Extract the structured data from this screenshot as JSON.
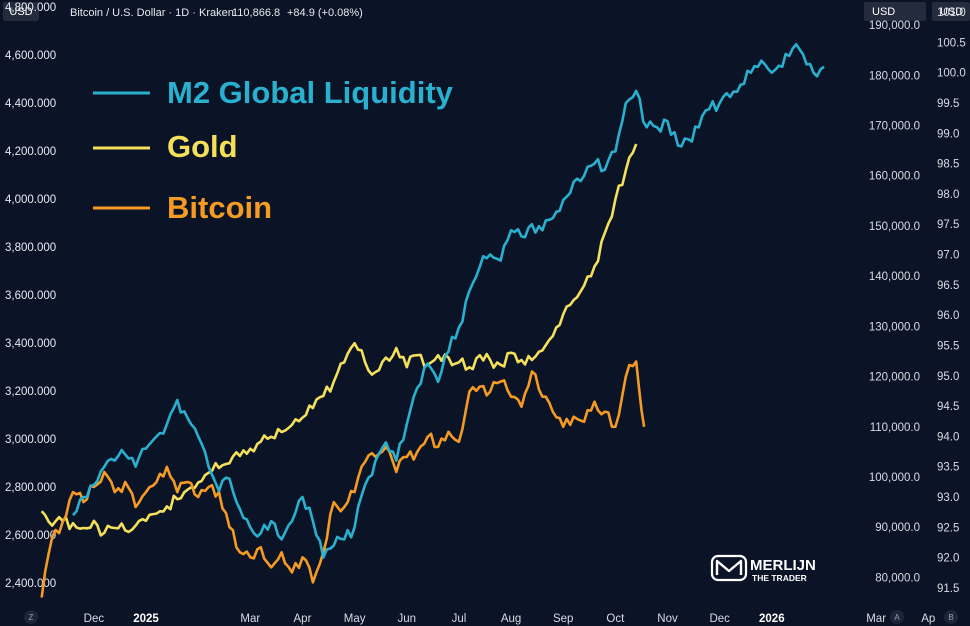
{
  "header": {
    "symbol": "Bitcoin / U.S. Dollar · 1D · Kraken",
    "price": "110,866.8",
    "change": "+84.9 (+0.08%)",
    "currency_left": "USD",
    "currency_right_1": "USD",
    "currency_right_2": "USD"
  },
  "corner_buttons": {
    "left": "Z",
    "mid": "A",
    "right": "B"
  },
  "logo": {
    "line1": "MERLIJN",
    "line2": "THE TRADER"
  },
  "colors": {
    "background": "#0b1326",
    "m2": "#2ab0cf",
    "gold": "#f5e05c",
    "bitcoin": "#f59b23",
    "header_price": "#f59b23"
  },
  "chart_data": {
    "type": "line",
    "title": "",
    "legend": [
      "M2 Global Liquidity",
      "Gold",
      "Bitcoin"
    ],
    "legend_position": "top-left",
    "x_labels": [
      {
        "label": "Dec",
        "t": 1,
        "bold": false
      },
      {
        "label": "2025",
        "t": 2,
        "bold": true
      },
      {
        "label": "Mar",
        "t": 4,
        "bold": false
      },
      {
        "label": "Apr",
        "t": 5,
        "bold": false
      },
      {
        "label": "May",
        "t": 6,
        "bold": false
      },
      {
        "label": "Jun",
        "t": 7,
        "bold": false
      },
      {
        "label": "Jul",
        "t": 8,
        "bold": false
      },
      {
        "label": "Aug",
        "t": 9,
        "bold": false
      },
      {
        "label": "Sep",
        "t": 10,
        "bold": false
      },
      {
        "label": "Oct",
        "t": 11,
        "bold": false
      },
      {
        "label": "Nov",
        "t": 12,
        "bold": false
      },
      {
        "label": "Dec",
        "t": 13,
        "bold": false
      },
      {
        "label": "2026",
        "t": 14,
        "bold": true
      },
      {
        "label": "Mar",
        "t": 16,
        "bold": false
      },
      {
        "label": "Ap",
        "t": 17,
        "bold": false
      }
    ],
    "x_range": [
      -0.8,
      17.8
    ],
    "left_axis": {
      "name": "Gold (USD)",
      "range": [
        2330,
        4830
      ],
      "ticks": [
        "4,800.000",
        "4,600.000",
        "4,400.000",
        "4,200.000",
        "4,000.000",
        "3,800.000",
        "3,600.000",
        "3,400.000",
        "3,200.000",
        "3,000.000",
        "2,800.000",
        "2,600.000",
        "2,400.000"
      ]
    },
    "middle_axis": {
      "name": "Bitcoin (USD)",
      "range": [
        75500,
        195000
      ],
      "ticks": [
        "190,000.0",
        "180,000.0",
        "170,000.0",
        "160,000.0",
        "150,000.0",
        "140,000.0",
        "130,000.0",
        "120,000.0",
        "110,000.0",
        "100,000.0",
        "90,000.0",
        "80,000.0"
      ]
    },
    "right_axis": {
      "name": "M2 Global Liquidity",
      "range": [
        91.3,
        101.2
      ],
      "ticks": [
        "101.0",
        "100.5",
        "100.0",
        "99.5",
        "99.0",
        "98.5",
        "98.0",
        "97.5",
        "97.0",
        "96.5",
        "96.0",
        "95.5",
        "95.0",
        "94.5",
        "94.0",
        "93.5",
        "93.0",
        "92.5",
        "92.0",
        "91.5"
      ]
    },
    "series": [
      {
        "name": "Gold",
        "axis": "left",
        "color": "#f5e05c",
        "x": [
          0.0,
          0.2,
          0.4,
          0.6,
          0.8,
          1.0,
          1.2,
          1.4,
          1.6,
          1.8,
          2.0,
          2.2,
          2.4,
          2.6,
          2.8,
          3.0,
          3.2,
          3.4,
          3.6,
          3.8,
          4.0,
          4.2,
          4.4,
          4.6,
          4.8,
          5.0,
          5.2,
          5.4,
          5.6,
          5.8,
          6.0,
          6.2,
          6.4,
          6.6,
          6.8,
          7.0,
          7.2,
          7.4,
          7.6,
          7.8,
          8.0,
          8.2,
          8.4,
          8.6,
          8.8,
          9.0,
          9.2,
          9.4,
          9.6,
          9.8,
          10.0,
          10.2,
          10.4,
          10.6,
          10.8,
          11.0,
          11.2,
          11.4
        ],
        "values": [
          2700,
          2640,
          2660,
          2650,
          2630,
          2660,
          2610,
          2630,
          2620,
          2640,
          2660,
          2690,
          2720,
          2750,
          2790,
          2820,
          2860,
          2880,
          2900,
          2930,
          2960,
          2990,
          3010,
          3030,
          3060,
          3090,
          3130,
          3180,
          3240,
          3320,
          3400,
          3320,
          3280,
          3340,
          3380,
          3300,
          3350,
          3310,
          3350,
          3340,
          3320,
          3300,
          3350,
          3330,
          3310,
          3360,
          3330,
          3330,
          3370,
          3430,
          3520,
          3580,
          3640,
          3720,
          3860,
          4000,
          4120,
          4230
        ]
      },
      {
        "name": "Bitcoin",
        "axis": "middle",
        "color": "#f59b23",
        "x": [
          0.0,
          0.2,
          0.4,
          0.6,
          0.8,
          1.0,
          1.2,
          1.4,
          1.6,
          1.8,
          2.0,
          2.2,
          2.4,
          2.6,
          2.8,
          3.0,
          3.2,
          3.4,
          3.6,
          3.8,
          4.0,
          4.2,
          4.4,
          4.6,
          4.8,
          5.0,
          5.2,
          5.4,
          5.6,
          5.8,
          6.0,
          6.2,
          6.4,
          6.6,
          6.8,
          7.0,
          7.2,
          7.4,
          7.6,
          7.8,
          8.0,
          8.2,
          8.4,
          8.6,
          8.8,
          9.0,
          9.2,
          9.4,
          9.6,
          9.8,
          10.0,
          10.2,
          10.4,
          10.6,
          10.8,
          11.0,
          11.2,
          11.4,
          11.55
        ],
        "values": [
          76000,
          88000,
          91000,
          97000,
          95000,
          98000,
          101000,
          97000,
          99000,
          94000,
          97000,
          99000,
          102000,
          97000,
          99000,
          96000,
          98000,
          97000,
          90000,
          85000,
          84000,
          86000,
          82000,
          85000,
          81000,
          84000,
          79000,
          85000,
          95000,
          94000,
          97000,
          103000,
          104000,
          106000,
          101000,
          104000,
          105000,
          108000,
          106000,
          109000,
          107000,
          117000,
          118000,
          117000,
          119000,
          116000,
          114000,
          121000,
          116000,
          113000,
          110000,
          112000,
          111000,
          115000,
          113000,
          110000,
          120000,
          123000,
          110000
        ]
      },
      {
        "name": "M2 Global Liquidity",
        "axis": "right",
        "color": "#2ab0cf",
        "x": [
          0.6,
          0.8,
          1.0,
          1.2,
          1.4,
          1.6,
          1.8,
          2.0,
          2.2,
          2.4,
          2.6,
          2.8,
          3.0,
          3.2,
          3.4,
          3.6,
          3.8,
          4.0,
          4.2,
          4.4,
          4.6,
          4.8,
          5.0,
          5.2,
          5.4,
          5.6,
          5.8,
          6.0,
          6.2,
          6.4,
          6.6,
          6.8,
          7.0,
          7.2,
          7.4,
          7.6,
          7.8,
          8.0,
          8.2,
          8.4,
          8.6,
          8.8,
          9.0,
          9.2,
          9.4,
          9.6,
          9.8,
          10.0,
          10.2,
          10.4,
          10.6,
          10.8,
          11.0,
          11.2,
          11.4,
          11.6,
          11.8,
          12.0,
          12.2,
          12.4,
          12.6,
          12.8,
          13.0,
          13.2,
          13.4,
          13.6,
          13.8,
          14.0,
          14.2,
          14.4,
          14.6,
          14.8,
          15.0
        ],
        "values": [
          92.7,
          93.0,
          93.2,
          93.5,
          93.6,
          93.7,
          93.5,
          93.8,
          94.0,
          94.2,
          94.6,
          94.3,
          94.0,
          93.5,
          93.1,
          93.3,
          92.8,
          92.5,
          92.4,
          92.6,
          92.3,
          92.6,
          93.0,
          92.6,
          92.0,
          92.2,
          92.3,
          92.5,
          93.2,
          93.6,
          93.9,
          93.6,
          94.2,
          94.8,
          95.2,
          94.9,
          95.4,
          95.8,
          96.4,
          96.8,
          97.0,
          96.9,
          97.4,
          97.3,
          97.5,
          97.4,
          97.6,
          97.9,
          98.2,
          98.3,
          98.5,
          98.4,
          98.7,
          99.5,
          99.7,
          99.1,
          99.1,
          99.2,
          98.8,
          98.9,
          99.1,
          99.4,
          99.5,
          99.6,
          99.8,
          100.0,
          100.2,
          100.0,
          100.1,
          100.4,
          100.3,
          100.0,
          100.1
        ]
      }
    ]
  }
}
